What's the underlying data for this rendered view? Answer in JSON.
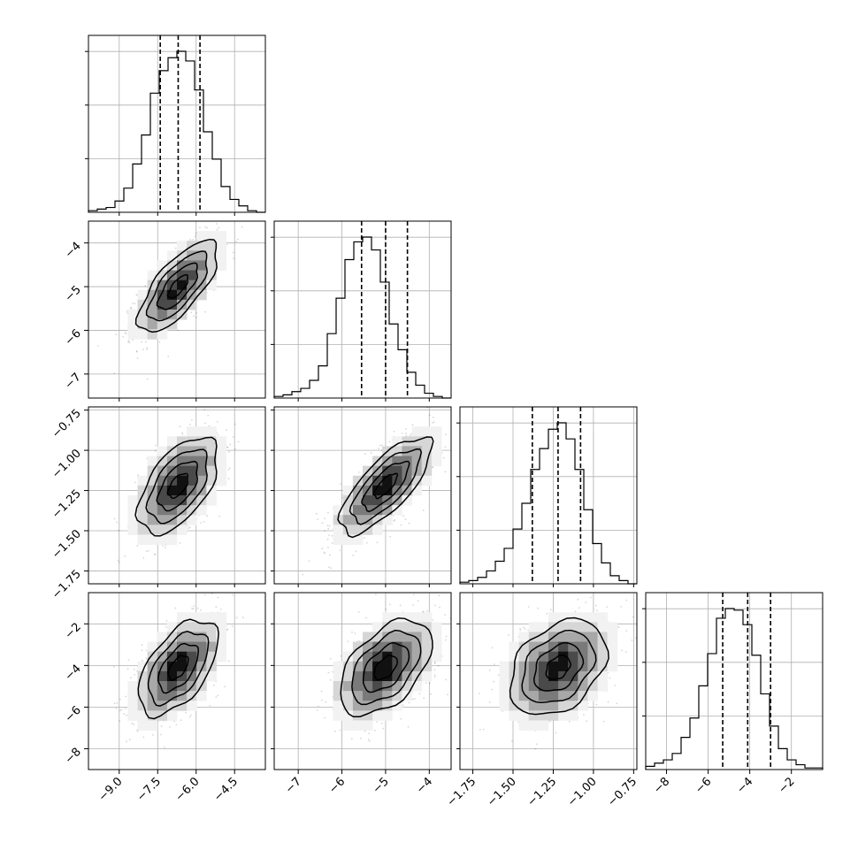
{
  "chart_data": {
    "type": "corner",
    "parameters": [
      {
        "range": [
          -10.2,
          -3.3
        ],
        "ticks": [
          -9.0,
          -7.5,
          -6.0,
          -4.5
        ],
        "tick_labels": [
          "−9.0",
          "−7.5",
          "−6.0",
          "−4.5"
        ],
        "quantiles": [
          -7.4,
          -6.7,
          -5.85
        ],
        "hist_heights": [
          0.01,
          0.02,
          0.03,
          0.07,
          0.15,
          0.3,
          0.48,
          0.74,
          0.88,
          0.96,
          1.0,
          0.94,
          0.76,
          0.5,
          0.33,
          0.16,
          0.08,
          0.04,
          0.01,
          0.0
        ]
      },
      {
        "range": [
          -7.55,
          -3.5
        ],
        "ticks": [
          -7,
          -6,
          -5,
          -4
        ],
        "tick_labels": [
          "−7",
          "−6",
          "−5",
          "−4"
        ],
        "quantiles": [
          -5.55,
          -5.0,
          -4.5
        ],
        "hist_heights": [
          0.01,
          0.02,
          0.04,
          0.06,
          0.11,
          0.2,
          0.4,
          0.62,
          0.86,
          0.97,
          1.0,
          0.92,
          0.72,
          0.46,
          0.3,
          0.16,
          0.08,
          0.03,
          0.01,
          0.0
        ]
      },
      {
        "range": [
          -1.83,
          -0.73
        ],
        "ticks": [
          -1.75,
          -1.5,
          -1.25,
          -1.0,
          -0.75
        ],
        "tick_labels": [
          "−1.75",
          "−1.50",
          "−1.25",
          "−1.00",
          "−0.75"
        ],
        "y_tick_labels": [
          "−0.75",
          "−1.00",
          "−1.25",
          "−1.50",
          "−1.75"
        ],
        "quantiles": [
          -1.38,
          -1.22,
          -1.08
        ],
        "hist_heights": [
          0.01,
          0.02,
          0.04,
          0.08,
          0.14,
          0.22,
          0.34,
          0.5,
          0.71,
          0.84,
          0.96,
          1.0,
          0.9,
          0.71,
          0.46,
          0.25,
          0.13,
          0.05,
          0.02,
          0.0
        ]
      },
      {
        "range": [
          -9.0,
          -0.5
        ],
        "ticks": [
          -8,
          -6,
          -4,
          -2
        ],
        "tick_labels": [
          "−8",
          "−6",
          "−4",
          "−2"
        ],
        "quantiles": [
          -5.3,
          -4.1,
          -3.0
        ],
        "hist_heights": [
          0.02,
          0.04,
          0.06,
          0.1,
          0.2,
          0.32,
          0.52,
          0.72,
          0.94,
          1.0,
          0.99,
          0.9,
          0.71,
          0.47,
          0.27,
          0.13,
          0.06,
          0.03,
          0.01,
          0.01
        ]
      }
    ],
    "pairs": [
      {
        "x": 0,
        "y": 1,
        "rho": 0.72
      },
      {
        "x": 0,
        "y": 2,
        "rho": 0.55
      },
      {
        "x": 1,
        "y": 2,
        "rho": 0.75
      },
      {
        "x": 0,
        "y": 3,
        "rho": 0.55
      },
      {
        "x": 1,
        "y": 3,
        "rho": 0.5
      },
      {
        "x": 2,
        "y": 3,
        "rho": 0.35
      }
    ],
    "hist_style": "step",
    "quantile_style": "dashed",
    "grid": true,
    "title": "",
    "legend": "none"
  }
}
